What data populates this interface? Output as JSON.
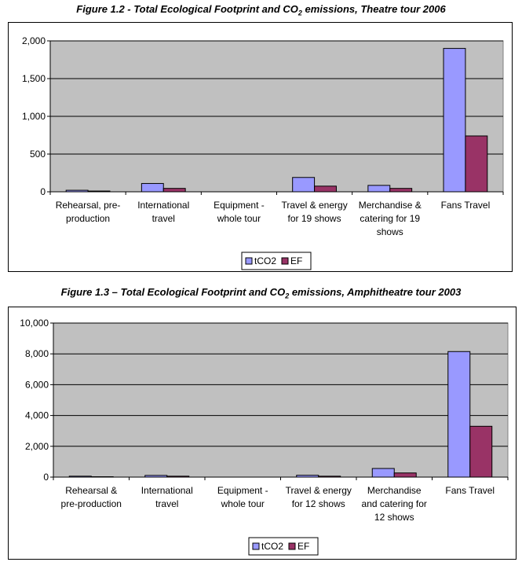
{
  "figures": [
    {
      "title_prefix": "Figure 1.2 - Total Ecological Footprint and CO",
      "title_sub": "2",
      "title_suffix": " emissions, Theatre tour 2006"
    },
    {
      "title_prefix": "Figure 1.3 – Total Ecological Footprint and CO",
      "title_sub": "2",
      "title_suffix": " emissions, Amphitheatre tour 2003"
    }
  ],
  "colors": {
    "tCO2": "#9999ff",
    "EF": "#993366",
    "plot_bg": "#c0c0c0"
  },
  "chart_data": [
    {
      "type": "bar",
      "title": "Figure 1.2 - Total Ecological Footprint and CO2 emissions, Theatre tour 2006",
      "categories": [
        [
          "Rehearsal, pre-",
          "production"
        ],
        [
          "International",
          "travel"
        ],
        [
          "Equipment -",
          "whole tour"
        ],
        [
          "Travel & energy",
          "for 19 shows"
        ],
        [
          "Merchandise &",
          "catering for 19",
          "shows"
        ],
        [
          "Fans Travel"
        ]
      ],
      "series": [
        {
          "name": "tCO2",
          "values": [
            20,
            110,
            0,
            190,
            85,
            1900
          ]
        },
        {
          "name": "EF",
          "values": [
            10,
            45,
            0,
            75,
            45,
            740
          ]
        }
      ],
      "ylim": [
        0,
        2000
      ],
      "yticks": [
        0,
        500,
        1000,
        1500,
        2000
      ],
      "ytick_labels": [
        "0",
        "500",
        "1,000",
        "1,500",
        "2,000"
      ],
      "grid": true,
      "legend": "bottom"
    },
    {
      "type": "bar",
      "title": "Figure 1.3 – Total Ecological Footprint and CO2 emissions, Amphitheatre tour 2003",
      "categories": [
        [
          "Rehearsal &",
          "pre-production"
        ],
        [
          "International",
          "travel"
        ],
        [
          "Equipment -",
          "whole tour"
        ],
        [
          "Travel & energy",
          "for 12 shows"
        ],
        [
          "Merchandise",
          "and catering for",
          "12 shows"
        ],
        [
          "Fans Travel"
        ]
      ],
      "series": [
        {
          "name": "tCO2",
          "values": [
            60,
            110,
            0,
            120,
            560,
            8150
          ]
        },
        {
          "name": "EF",
          "values": [
            25,
            60,
            0,
            60,
            270,
            3300
          ]
        }
      ],
      "ylim": [
        0,
        10000
      ],
      "yticks": [
        0,
        2000,
        4000,
        6000,
        8000,
        10000
      ],
      "ytick_labels": [
        "0",
        "2,000",
        "4,000",
        "6,000",
        "8,000",
        "10,000"
      ],
      "grid": true,
      "legend": "bottom"
    }
  ]
}
